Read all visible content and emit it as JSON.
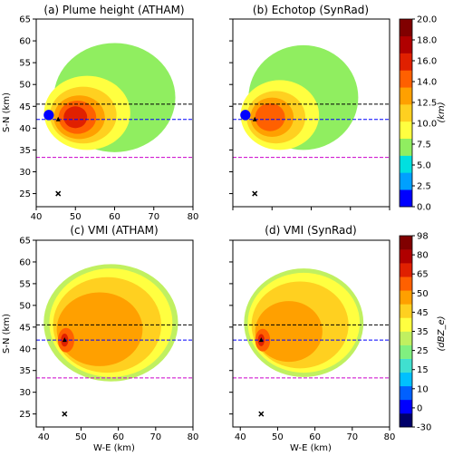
{
  "chart_data": [
    {
      "type": "heatmap",
      "title": "(a) Plume height (ATHAM)",
      "xlabel": "",
      "ylabel": "S-N (km)",
      "xlim": [
        40,
        80
      ],
      "ylim": [
        22,
        65
      ],
      "xticks": [
        "40",
        "50",
        "60",
        "70",
        "80"
      ],
      "yticks": [
        "25",
        "30",
        "35",
        "40",
        "45",
        "50",
        "55",
        "60",
        "65"
      ],
      "field": "height",
      "lines": [
        {
          "y": 45.5,
          "color": "#000000"
        },
        {
          "y": 42.0,
          "color": "#0000ff"
        },
        {
          "y": 33.3,
          "color": "#cc00cc"
        }
      ],
      "markers": [
        {
          "x": 45.6,
          "y": 25.0,
          "symbol": "x"
        },
        {
          "x": 45.6,
          "y": 42.0,
          "symbol": "triangle"
        }
      ]
    },
    {
      "type": "heatmap",
      "title": "(b) Echotop (SynRad)",
      "xlabel": "",
      "ylabel": "",
      "xlim": [
        40,
        80
      ],
      "ylim": [
        22,
        65
      ],
      "xticks": [
        "",
        "",
        "",
        "",
        ""
      ],
      "yticks": [
        "",
        "",
        "",
        "",
        "",
        "",
        "",
        "",
        ""
      ],
      "field": "height",
      "lines": [
        {
          "y": 45.5,
          "color": "#000000"
        },
        {
          "y": 42.0,
          "color": "#0000ff"
        },
        {
          "y": 33.3,
          "color": "#cc00cc"
        }
      ],
      "markers": [
        {
          "x": 45.6,
          "y": 25.0,
          "symbol": "x"
        },
        {
          "x": 45.6,
          "y": 42.0,
          "symbol": "triangle"
        }
      ]
    },
    {
      "type": "heatmap",
      "title": "(c) VMI (ATHAM)",
      "xlabel": "W-E (km)",
      "ylabel": "S-N (km)",
      "xlim": [
        38,
        80
      ],
      "ylim": [
        22,
        65
      ],
      "xticks": [
        "40",
        "50",
        "60",
        "70",
        "80"
      ],
      "yticks": [
        "25",
        "30",
        "35",
        "40",
        "45",
        "50",
        "55",
        "60",
        "65"
      ],
      "field": "vmi",
      "lines": [
        {
          "y": 45.5,
          "color": "#000000"
        },
        {
          "y": 42.0,
          "color": "#0000ff"
        },
        {
          "y": 33.3,
          "color": "#cc00cc"
        }
      ],
      "markers": [
        {
          "x": 45.6,
          "y": 25.0,
          "symbol": "x"
        },
        {
          "x": 45.6,
          "y": 42.0,
          "symbol": "triangle"
        }
      ]
    },
    {
      "type": "heatmap",
      "title": "(d) VMI (SynRad)",
      "xlabel": "W-E (km)",
      "ylabel": "",
      "xlim": [
        38,
        80
      ],
      "ylim": [
        22,
        65
      ],
      "xticks": [
        "40",
        "50",
        "60",
        "70",
        "80"
      ],
      "yticks": [
        "",
        "",
        "",
        "",
        "",
        "",
        "",
        "",
        ""
      ],
      "field": "vmi",
      "lines": [
        {
          "y": 45.5,
          "color": "#000000"
        },
        {
          "y": 42.0,
          "color": "#0000ff"
        },
        {
          "y": 33.3,
          "color": "#cc00cc"
        }
      ],
      "markers": [
        {
          "x": 45.6,
          "y": 25.0,
          "symbol": "x"
        },
        {
          "x": 45.6,
          "y": 42.0,
          "symbol": "triangle"
        }
      ]
    }
  ],
  "colorbars": [
    {
      "label": "(km)",
      "ticks": [
        "0.0",
        "2.5",
        "5.0",
        "7.5",
        "10.0",
        "12.5",
        "14.0",
        "16.0",
        "18.0",
        "20.0"
      ],
      "colors": [
        "#0000ff",
        "#00a0ff",
        "#00e0e0",
        "#90ee60",
        "#ffff40",
        "#ffd020",
        "#ffa000",
        "#ff6000",
        "#e02000",
        "#b00000",
        "#800000"
      ]
    },
    {
      "label": "(dBZ_e)",
      "ticks": [
        "-30",
        "0",
        "10",
        "15",
        "25",
        "35",
        "45",
        "50",
        "65",
        "80",
        "98"
      ],
      "colors": [
        "#00006a",
        "#0000ff",
        "#0060ff",
        "#00c0ff",
        "#40e0d0",
        "#80f080",
        "#c0f060",
        "#ffff40",
        "#ffd020",
        "#ffa000",
        "#ff6000",
        "#e02000",
        "#b00000",
        "#800000"
      ]
    }
  ]
}
